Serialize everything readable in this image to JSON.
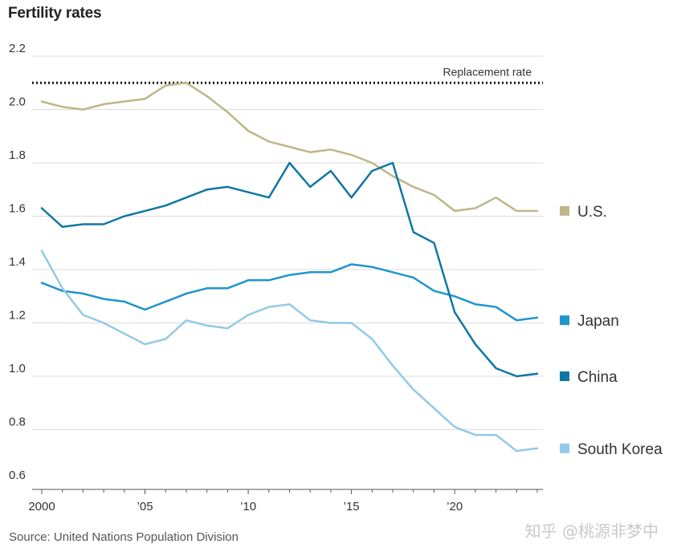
{
  "title": "Fertility rates",
  "source": "Source: United Nations Population Division",
  "watermark": "知乎 @桃源非梦中",
  "colors": {
    "us": "#bfb68a",
    "japan": "#1f95cc",
    "china": "#0f77a3",
    "south_korea": "#93c9e8",
    "grid": "#dddddd",
    "axis": "#555555",
    "text": "#333333"
  },
  "chart_data": {
    "type": "line",
    "title": "Fertility rates",
    "xlabel": "",
    "ylabel": "",
    "xlim": [
      2000,
      2024
    ],
    "ylim": [
      0.6,
      2.2
    ],
    "y_ticks": [
      0.6,
      0.8,
      1.0,
      1.2,
      1.4,
      1.6,
      1.8,
      2.0,
      2.2
    ],
    "y_tick_labels": [
      "0.6",
      "0.8",
      "1.0",
      "1.2",
      "1.4",
      "1.6",
      "1.8",
      "2.0",
      "2.2"
    ],
    "x_ticks": [
      2000,
      2005,
      2010,
      2015,
      2020
    ],
    "x_tick_labels": [
      "2000",
      "’05",
      "’10",
      "’15",
      "’20"
    ],
    "grid": true,
    "reference_line": {
      "label": "Replacement rate",
      "value": 2.1
    },
    "x": [
      2000,
      2001,
      2002,
      2003,
      2004,
      2005,
      2006,
      2007,
      2008,
      2009,
      2010,
      2011,
      2012,
      2013,
      2014,
      2015,
      2016,
      2017,
      2018,
      2019,
      2020,
      2021,
      2022,
      2023,
      2024
    ],
    "series": [
      {
        "key": "us",
        "name": "U.S.",
        "legend_value": 1.62,
        "values": [
          2.03,
          2.01,
          2.0,
          2.02,
          2.03,
          2.04,
          2.09,
          2.1,
          2.05,
          1.99,
          1.92,
          1.88,
          1.86,
          1.84,
          1.85,
          1.83,
          1.8,
          1.75,
          1.71,
          1.68,
          1.62,
          1.63,
          1.67,
          1.62,
          1.62
        ]
      },
      {
        "key": "japan",
        "name": "Japan",
        "legend_value": 1.21,
        "values": [
          1.35,
          1.32,
          1.31,
          1.29,
          1.28,
          1.25,
          1.28,
          1.31,
          1.33,
          1.33,
          1.36,
          1.36,
          1.38,
          1.39,
          1.39,
          1.42,
          1.41,
          1.39,
          1.37,
          1.32,
          1.3,
          1.27,
          1.26,
          1.21,
          1.22
        ]
      },
      {
        "key": "china",
        "name": "China",
        "legend_value": 1.0,
        "values": [
          1.63,
          1.56,
          1.57,
          1.57,
          1.6,
          1.62,
          1.64,
          1.67,
          1.7,
          1.71,
          1.69,
          1.67,
          1.8,
          1.71,
          1.77,
          1.67,
          1.77,
          1.8,
          1.54,
          1.5,
          1.24,
          1.12,
          1.03,
          1.0,
          1.01
        ]
      },
      {
        "key": "south_korea",
        "name": "South Korea",
        "legend_value": 0.73,
        "values": [
          1.47,
          1.33,
          1.23,
          1.2,
          1.16,
          1.12,
          1.14,
          1.21,
          1.19,
          1.18,
          1.23,
          1.26,
          1.27,
          1.21,
          1.2,
          1.2,
          1.14,
          1.04,
          0.95,
          0.88,
          0.81,
          0.78,
          0.78,
          0.72,
          0.73
        ]
      }
    ]
  }
}
